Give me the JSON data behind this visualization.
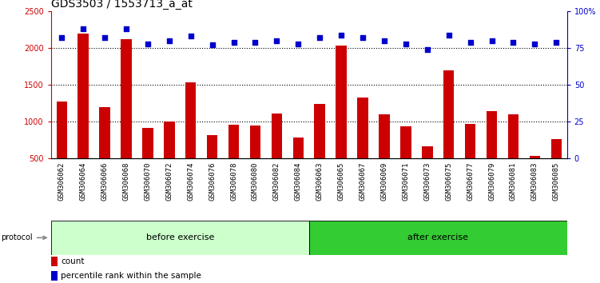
{
  "title": "GDS3503 / 1553713_a_at",
  "categories": [
    "GSM306062",
    "GSM306064",
    "GSM306066",
    "GSM306068",
    "GSM306070",
    "GSM306072",
    "GSM306074",
    "GSM306076",
    "GSM306078",
    "GSM306080",
    "GSM306082",
    "GSM306084",
    "GSM306063",
    "GSM306065",
    "GSM306067",
    "GSM306069",
    "GSM306071",
    "GSM306073",
    "GSM306075",
    "GSM306077",
    "GSM306079",
    "GSM306081",
    "GSM306083",
    "GSM306085"
  ],
  "counts": [
    1270,
    2200,
    1200,
    2120,
    920,
    1000,
    1530,
    820,
    960,
    950,
    1110,
    780,
    1240,
    2030,
    1330,
    1100,
    940,
    670,
    1700,
    970,
    1140,
    1100,
    530,
    760
  ],
  "percentile_ranks": [
    82,
    88,
    82,
    88,
    78,
    80,
    83,
    77,
    79,
    79,
    80,
    78,
    82,
    84,
    82,
    80,
    78,
    74,
    84,
    79,
    80,
    79,
    78,
    79
  ],
  "before_exercise_count": 12,
  "after_exercise_count": 12,
  "ylim_left": [
    500,
    2500
  ],
  "ylim_right": [
    0,
    100
  ],
  "bar_color": "#cc0000",
  "dot_color": "#0000cc",
  "before_color": "#ccffcc",
  "after_color": "#33cc33",
  "bg_color": "#ffffff",
  "panel_bg": "#cccccc",
  "title_fontsize": 10,
  "tick_fontsize": 7,
  "bar_width": 0.5
}
